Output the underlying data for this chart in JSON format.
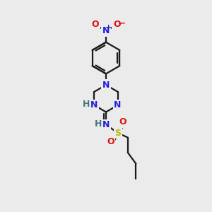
{
  "bg_color": "#ebebeb",
  "bond_color": "#1a1a1a",
  "bond_width": 1.6,
  "atom_colors": {
    "N": "#2020dd",
    "O": "#dd1111",
    "S": "#bbbb00",
    "H": "#447777"
  },
  "fs": 8.5,
  "fs_small": 7,
  "xlim": [
    0,
    10
  ],
  "ylim": [
    0,
    14
  ]
}
